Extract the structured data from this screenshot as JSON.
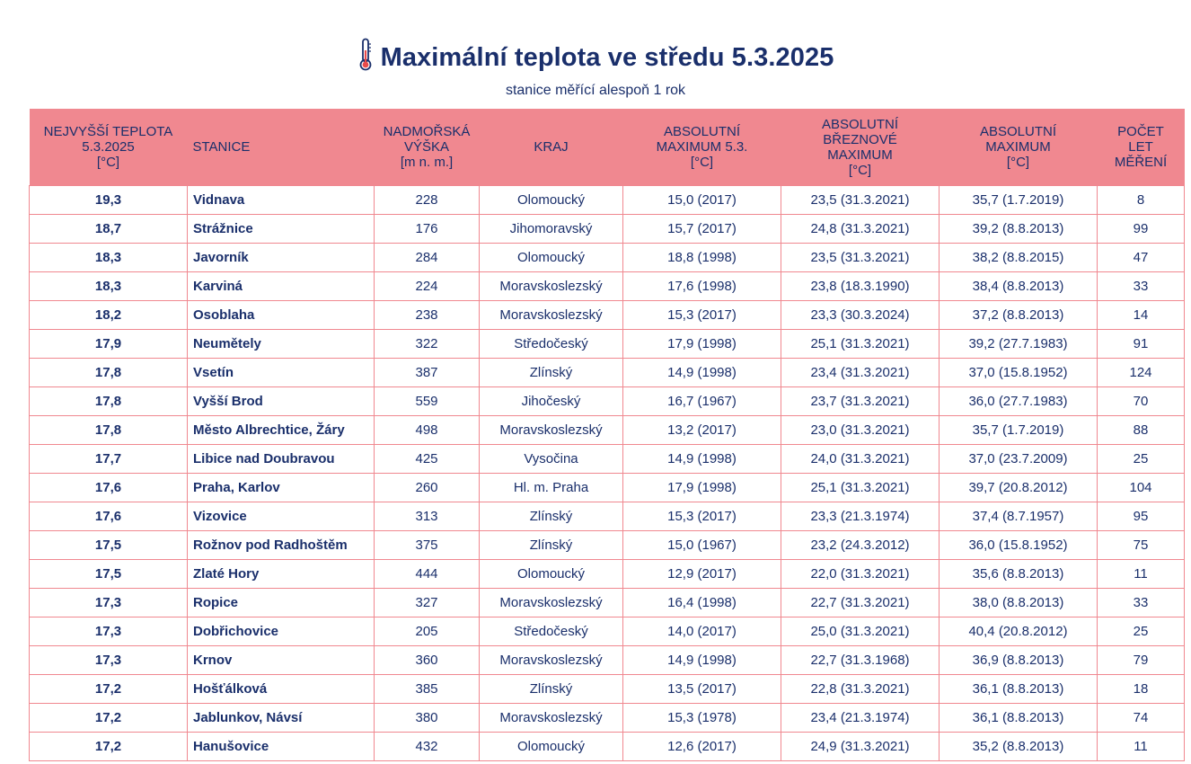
{
  "header": {
    "title": "Maximální teplota ve středu 5.3.2025",
    "subtitle": "stanice měřící alespoň 1 rok",
    "title_icon": "thermometer-icon",
    "colors": {
      "header_bg": "#f08890",
      "text": "#1a2f6b",
      "border": "#f08890",
      "icon_bulb": "#e84a4a"
    }
  },
  "table": {
    "columns": [
      [
        "NEJVYŠŠÍ TEPLOTA",
        "5.3.2025",
        "[°C]"
      ],
      [
        "STANICE"
      ],
      [
        "NADMOŘSKÁ",
        "VÝŠKA",
        "[m n. m.]"
      ],
      [
        "KRAJ"
      ],
      [
        "ABSOLUTNÍ",
        "MAXIMUM 5.3.",
        "[°C]"
      ],
      [
        "ABSOLUTNÍ",
        "BŘEZNOVÉ",
        "MAXIMUM",
        "[°C]"
      ],
      [
        "ABSOLUTNÍ",
        "MAXIMUM",
        "[°C]"
      ],
      [
        "POČET",
        "LET",
        "MĚŘENÍ"
      ]
    ],
    "rows": [
      [
        "19,3",
        "Vidnava",
        "228",
        "Olomoucký",
        "15,0 (2017)",
        "23,5 (31.3.2021)",
        "35,7 (1.7.2019)",
        "8"
      ],
      [
        "18,7",
        "Strážnice",
        "176",
        "Jihomoravský",
        "15,7 (2017)",
        "24,8 (31.3.2021)",
        "39,2 (8.8.2013)",
        "99"
      ],
      [
        "18,3",
        "Javorník",
        "284",
        "Olomoucký",
        "18,8 (1998)",
        "23,5 (31.3.2021)",
        "38,2 (8.8.2015)",
        "47"
      ],
      [
        "18,3",
        "Karviná",
        "224",
        "Moravskoslezský",
        "17,6 (1998)",
        "23,8 (18.3.1990)",
        "38,4 (8.8.2013)",
        "33"
      ],
      [
        "18,2",
        "Osoblaha",
        "238",
        "Moravskoslezský",
        "15,3 (2017)",
        "23,3 (30.3.2024)",
        "37,2 (8.8.2013)",
        "14"
      ],
      [
        "17,9",
        "Neumětely",
        "322",
        "Středočeský",
        "17,9 (1998)",
        "25,1 (31.3.2021)",
        "39,2 (27.7.1983)",
        "91"
      ],
      [
        "17,8",
        "Vsetín",
        "387",
        "Zlínský",
        "14,9 (1998)",
        "23,4 (31.3.2021)",
        "37,0 (15.8.1952)",
        "124"
      ],
      [
        "17,8",
        "Vyšší Brod",
        "559",
        "Jihočeský",
        "16,7 (1967)",
        "23,7 (31.3.2021)",
        "36,0 (27.7.1983)",
        "70"
      ],
      [
        "17,8",
        "Město Albrechtice, Žáry",
        "498",
        "Moravskoslezský",
        "13,2 (2017)",
        "23,0 (31.3.2021)",
        "35,7 (1.7.2019)",
        "88"
      ],
      [
        "17,7",
        "Libice nad Doubravou",
        "425",
        "Vysočina",
        "14,9 (1998)",
        "24,0 (31.3.2021)",
        "37,0 (23.7.2009)",
        "25"
      ],
      [
        "17,6",
        "Praha, Karlov",
        "260",
        "Hl. m. Praha",
        "17,9 (1998)",
        "25,1 (31.3.2021)",
        "39,7 (20.8.2012)",
        "104"
      ],
      [
        "17,6",
        "Vizovice",
        "313",
        "Zlínský",
        "15,3 (2017)",
        "23,3 (21.3.1974)",
        "37,4 (8.7.1957)",
        "95"
      ],
      [
        "17,5",
        "Rožnov pod Radhoštěm",
        "375",
        "Zlínský",
        "15,0 (1967)",
        "23,2 (24.3.2012)",
        "36,0 (15.8.1952)",
        "75"
      ],
      [
        "17,5",
        "Zlaté Hory",
        "444",
        "Olomoucký",
        "12,9 (2017)",
        "22,0 (31.3.2021)",
        "35,6 (8.8.2013)",
        "11"
      ],
      [
        "17,3",
        "Ropice",
        "327",
        "Moravskoslezský",
        "16,4 (1998)",
        "22,7 (31.3.2021)",
        "38,0 (8.8.2013)",
        "33"
      ],
      [
        "17,3",
        "Dobřichovice",
        "205",
        "Středočeský",
        "14,0 (2017)",
        "25,0 (31.3.2021)",
        "40,4 (20.8.2012)",
        "25"
      ],
      [
        "17,3",
        "Krnov",
        "360",
        "Moravskoslezský",
        "14,9 (1998)",
        "22,7 (31.3.1968)",
        "36,9 (8.8.2013)",
        "79"
      ],
      [
        "17,2",
        "Hošťálková",
        "385",
        "Zlínský",
        "13,5 (2017)",
        "22,8 (31.3.2021)",
        "36,1 (8.8.2013)",
        "18"
      ],
      [
        "17,2",
        "Jablunkov, Návsí",
        "380",
        "Moravskoslezský",
        "15,3 (1978)",
        "23,4 (21.3.1974)",
        "36,1 (8.8.2013)",
        "74"
      ],
      [
        "17,2",
        "Hanušovice",
        "432",
        "Olomoucký",
        "12,6 (2017)",
        "24,9 (31.3.2021)",
        "35,2 (8.8.2013)",
        "11"
      ]
    ]
  }
}
